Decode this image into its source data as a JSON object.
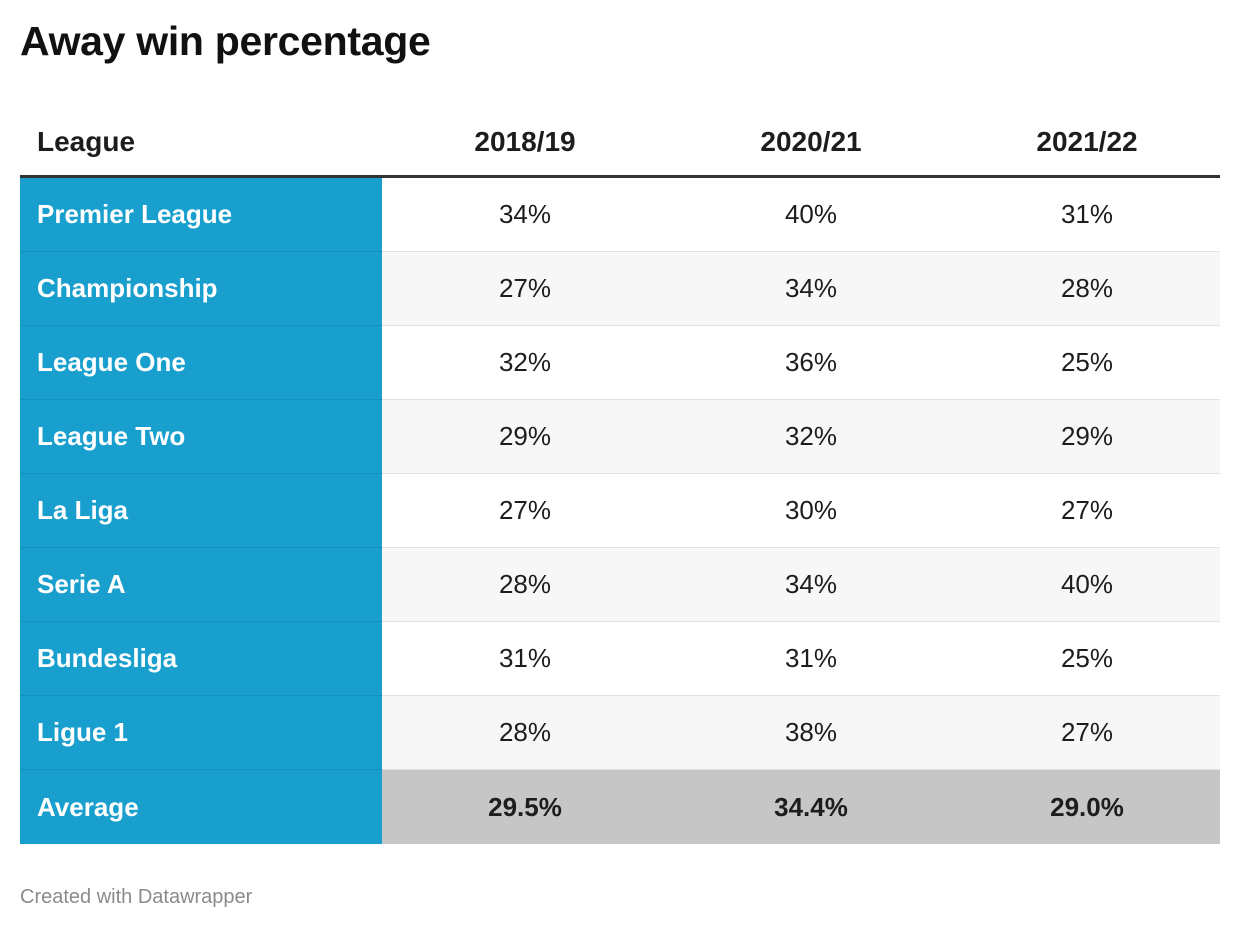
{
  "title": "Away win percentage",
  "footer": "Created with Datawrapper",
  "colors": {
    "league_column": "#189fcd",
    "average_row": "#c6c6c6",
    "header_rule": "#333333",
    "stripe": "#f7f7f7"
  },
  "chart_data": {
    "type": "table",
    "title": "Away win percentage",
    "columns": [
      "League",
      "2018/19",
      "2020/21",
      "2021/22"
    ],
    "rows": [
      {
        "league": "Premier League",
        "values": [
          "34%",
          "40%",
          "31%"
        ]
      },
      {
        "league": "Championship",
        "values": [
          "27%",
          "34%",
          "28%"
        ]
      },
      {
        "league": "League One",
        "values": [
          "32%",
          "36%",
          "25%"
        ]
      },
      {
        "league": "League Two",
        "values": [
          "29%",
          "32%",
          "29%"
        ]
      },
      {
        "league": "La Liga",
        "values": [
          "27%",
          "30%",
          "27%"
        ]
      },
      {
        "league": "Serie A",
        "values": [
          "28%",
          "34%",
          "40%"
        ]
      },
      {
        "league": "Bundesliga",
        "values": [
          "31%",
          "31%",
          "25%"
        ]
      },
      {
        "league": "Ligue 1",
        "values": [
          "28%",
          "38%",
          "27%"
        ]
      }
    ],
    "average": {
      "league": "Average",
      "values": [
        "29.5%",
        "34.4%",
        "29.0%"
      ]
    }
  }
}
